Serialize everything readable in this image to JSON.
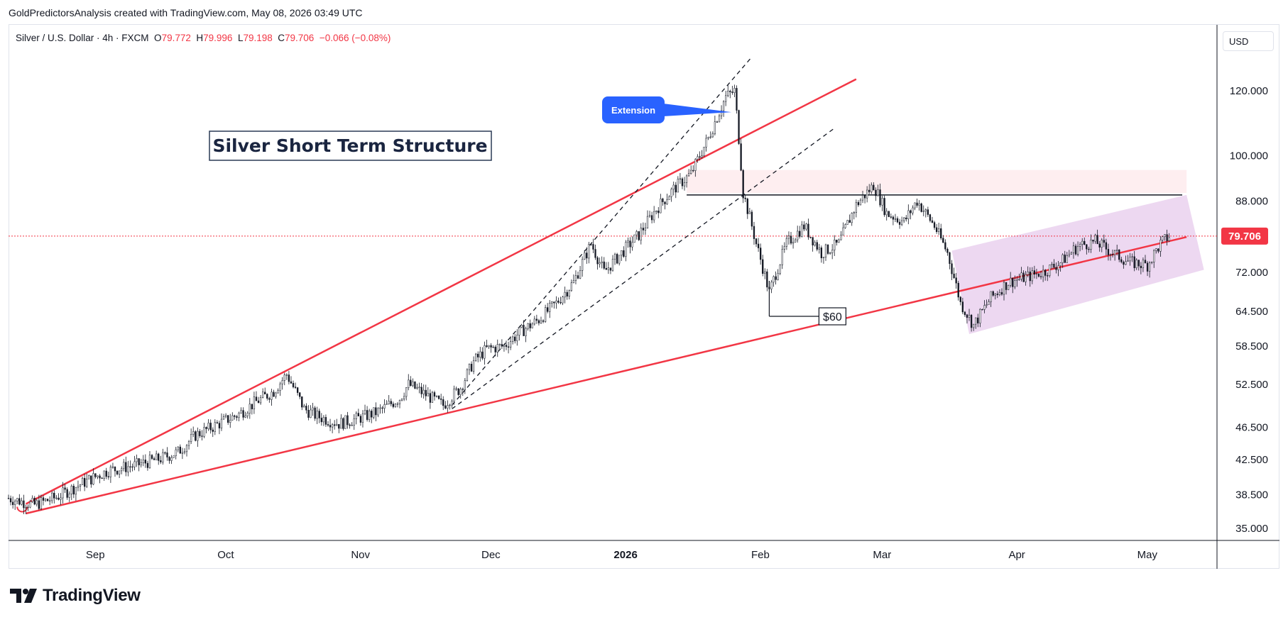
{
  "header": {
    "credit": "GoldPredictorsAnalysis created with TradingView.com, May 08, 2026 03:49 UTC"
  },
  "legend": {
    "symbol": "Silver / U.S. Dollar · 4h · FXCM",
    "open_label": "O",
    "open": "79.772",
    "high_label": "H",
    "high": "79.996",
    "low_label": "L",
    "low": "79.198",
    "close_label": "C",
    "close": "79.706",
    "change": "−0.066 (−0.08%)"
  },
  "currency": "USD",
  "brand": {
    "name": "TradingView",
    "logo_icon": "tradingview-logo-icon"
  },
  "colors": {
    "trend_red": "#f23645",
    "channel_purple": "#e1bee7",
    "resistance_pink": "#fde7ea",
    "callout_blue": "#2962ff",
    "price_badge": "#f23645",
    "candle_ink": "#131722"
  },
  "chart_data": {
    "type": "candlestick",
    "title": "Silver Short Term Structure",
    "scale": "log",
    "ylim": [
      35.0,
      135.0
    ],
    "y_ticks": [
      "120.000",
      "100.000",
      "88.000",
      "79.706",
      "72.000",
      "64.500",
      "58.500",
      "52.500",
      "46.500",
      "42.500",
      "38.500",
      "35.000"
    ],
    "x_ticks": [
      "Sep",
      "Oct",
      "Nov",
      "Dec",
      "2026",
      "Feb",
      "Mar",
      "Apr",
      "May"
    ],
    "last_price": "79.706",
    "price_path": [
      [
        "2025-08-14",
        38.1
      ],
      [
        "2025-08-20",
        37.4
      ],
      [
        "2025-08-25",
        38.2
      ],
      [
        "2025-09-01",
        40.0
      ],
      [
        "2025-09-06",
        41.2
      ],
      [
        "2025-09-12",
        41.8
      ],
      [
        "2025-09-18",
        42.6
      ],
      [
        "2025-09-22",
        43.4
      ],
      [
        "2025-09-26",
        45.5
      ],
      [
        "2025-09-30",
        46.6
      ],
      [
        "2025-10-06",
        48.3
      ],
      [
        "2025-10-10",
        50.0
      ],
      [
        "2025-10-14",
        51.5
      ],
      [
        "2025-10-17",
        54.0
      ],
      [
        "2025-10-21",
        49.0
      ],
      [
        "2025-10-24",
        48.0
      ],
      [
        "2025-10-29",
        47.0
      ],
      [
        "2025-11-03",
        47.8
      ],
      [
        "2025-11-07",
        48.6
      ],
      [
        "2025-11-12",
        50.5
      ],
      [
        "2025-11-14",
        52.5
      ],
      [
        "2025-11-18",
        51.0
      ],
      [
        "2025-11-22",
        49.5
      ],
      [
        "2025-11-26",
        52.0
      ],
      [
        "2025-11-29",
        56.0
      ],
      [
        "2025-12-02",
        58.0
      ],
      [
        "2025-12-06",
        58.5
      ],
      [
        "2025-12-10",
        61.0
      ],
      [
        "2025-12-14",
        63.0
      ],
      [
        "2025-12-18",
        66.0
      ],
      [
        "2025-12-22",
        70.0
      ],
      [
        "2025-12-26",
        78.0
      ],
      [
        "2025-12-29",
        72.0
      ],
      [
        "2026-01-02",
        76.0
      ],
      [
        "2026-01-06",
        80.0
      ],
      [
        "2026-01-10",
        86.0
      ],
      [
        "2026-01-14",
        91.0
      ],
      [
        "2026-01-18",
        95.0
      ],
      [
        "2026-01-22",
        105.0
      ],
      [
        "2026-01-26",
        118.0
      ],
      [
        "2026-01-28",
        120.0
      ],
      [
        "2026-01-30",
        90.0
      ],
      [
        "2026-02-02",
        78.0
      ],
      [
        "2026-02-05",
        68.0
      ],
      [
        "2026-02-09",
        78.0
      ],
      [
        "2026-02-13",
        82.0
      ],
      [
        "2026-02-17",
        76.0
      ],
      [
        "2026-02-21",
        78.0
      ],
      [
        "2026-02-25",
        87.0
      ],
      [
        "2026-03-01",
        92.0
      ],
      [
        "2026-03-04",
        85.0
      ],
      [
        "2026-03-08",
        83.0
      ],
      [
        "2026-03-11",
        88.0
      ],
      [
        "2026-03-15",
        82.0
      ],
      [
        "2026-03-18",
        76.0
      ],
      [
        "2026-03-21",
        66.0
      ],
      [
        "2026-03-24",
        62.0
      ],
      [
        "2026-03-28",
        67.0
      ],
      [
        "2026-04-01",
        70.0
      ],
      [
        "2026-04-05",
        71.0
      ],
      [
        "2026-04-09",
        72.0
      ],
      [
        "2026-04-13",
        74.0
      ],
      [
        "2026-04-17",
        77.5
      ],
      [
        "2026-04-21",
        78.5
      ],
      [
        "2026-04-25",
        76.0
      ],
      [
        "2026-04-29",
        74.0
      ],
      [
        "2026-05-03",
        73.5
      ],
      [
        "2026-05-06",
        78.0
      ],
      [
        "2026-05-08",
        79.706
      ]
    ],
    "annotations": [
      {
        "type": "callout",
        "text": "Extension",
        "x": "2026-01-26",
        "y": 113.0
      },
      {
        "type": "label",
        "text": "$60",
        "x": "2026-02-05",
        "y": 62.5
      }
    ],
    "trendlines": [
      {
        "name": "upper-wedge",
        "from": [
          "2025-08-18",
          37.5
        ],
        "to": [
          "2026-02-25",
          124.0
        ]
      },
      {
        "name": "lower-wedge",
        "from": [
          "2025-08-18",
          36.5
        ],
        "to": [
          "2026-05-12",
          79.5
        ]
      },
      {
        "name": "resistance",
        "from": [
          "2026-01-17",
          89.5
        ],
        "to": [
          "2026-05-11",
          89.5
        ]
      },
      {
        "name": "dashed-upper",
        "from": [
          "2025-11-24",
          49.5
        ],
        "to": [
          "2026-02-01",
          132.0
        ]
      },
      {
        "name": "dashed-lower",
        "from": [
          "2025-11-24",
          49.0
        ],
        "to": [
          "2026-02-20",
          108.0
        ]
      }
    ]
  }
}
